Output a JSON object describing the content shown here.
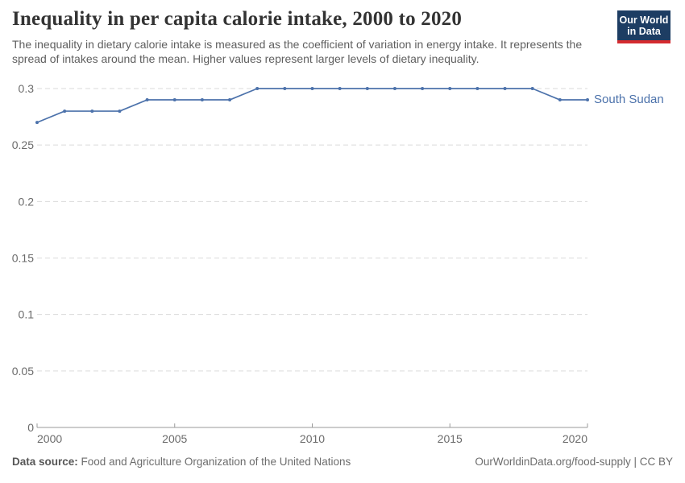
{
  "header": {
    "title": "Inequality in per capita calorie intake, 2000 to 2020",
    "subtitle": "The inequality in dietary calorie intake is measured as the coefficient of variation in energy intake. It represents the spread of intakes around the mean. Higher values represent larger levels of dietary inequality."
  },
  "logo": {
    "line1": "Our World",
    "line2": "in Data"
  },
  "colors": {
    "logo_navy": "#1d3d63",
    "logo_red": "#d42b2f",
    "series_blue": "#4c72ab",
    "grid_gray": "#dadada",
    "axis_gray": "#9a9a9a"
  },
  "chart_data": {
    "type": "line",
    "title": "Inequality in per capita calorie intake, 2000 to 2020",
    "xlabel": "",
    "ylabel": "",
    "x": [
      2000,
      2001,
      2002,
      2003,
      2004,
      2005,
      2006,
      2007,
      2008,
      2009,
      2010,
      2011,
      2012,
      2013,
      2014,
      2015,
      2016,
      2017,
      2018,
      2019,
      2020
    ],
    "series": [
      {
        "name": "South Sudan",
        "color": "#4c72ab",
        "values": [
          0.27,
          0.28,
          0.28,
          0.28,
          0.29,
          0.29,
          0.29,
          0.29,
          0.3,
          0.3,
          0.3,
          0.3,
          0.3,
          0.3,
          0.3,
          0.3,
          0.3,
          0.3,
          0.3,
          0.29,
          0.29
        ]
      }
    ],
    "xlim": [
      2000,
      2020
    ],
    "ylim": [
      0,
      0.3
    ],
    "xticks": [
      2000,
      2005,
      2010,
      2015,
      2020
    ],
    "yticks": [
      0,
      0.05,
      0.1,
      0.15,
      0.2,
      0.25,
      0.3
    ],
    "grid": "horizontal-dashed",
    "legend_position": "end-of-line-label"
  },
  "footer": {
    "source_label": "Data source:",
    "source_text": "Food and Agriculture Organization of the United Nations",
    "credit": "OurWorldinData.org/food-supply | CC BY"
  }
}
